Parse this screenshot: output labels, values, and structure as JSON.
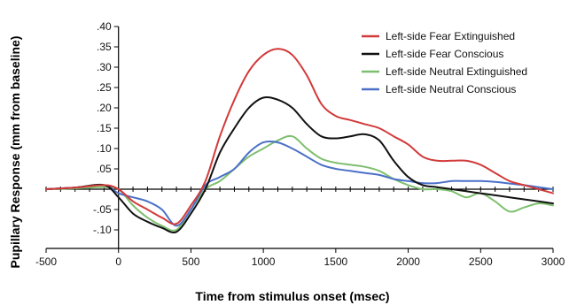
{
  "chart_data": {
    "type": "line",
    "title": "",
    "xlabel": "Time from stimulus onset (msec)",
    "ylabel": "Pupillary Response (mm from baseline)",
    "xlim": [
      -500,
      3000
    ],
    "ylim": [
      -0.12,
      0.4
    ],
    "x_ticks": [
      -500,
      0,
      500,
      1000,
      1500,
      2000,
      2500,
      3000
    ],
    "x_tick_labels": [
      "-500",
      "0",
      "500",
      "1000",
      "1500",
      "2000",
      "2500",
      "3000"
    ],
    "y_ticks": [
      0.4,
      0.35,
      0.3,
      0.25,
      0.2,
      0.15,
      0.1,
      0.05,
      0.0,
      -0.05,
      -0.1
    ],
    "y_tick_labels": [
      ".40",
      ".35",
      ".30",
      ".25",
      ".20",
      ".15",
      ".10",
      ".05",
      "",
      "-.05",
      "-.10"
    ],
    "grid": false,
    "legend_position": "top-right",
    "series": [
      {
        "name": "Left-side Fear Extinguished",
        "color": "#d23a3a",
        "x": [
          -500,
          -300,
          -100,
          0,
          100,
          200,
          300,
          400,
          500,
          600,
          700,
          800,
          900,
          1000,
          1100,
          1200,
          1300,
          1400,
          1500,
          1600,
          1700,
          1800,
          1900,
          2000,
          2100,
          2200,
          2300,
          2400,
          2500,
          2600,
          2700,
          2800,
          2900,
          3000
        ],
        "y": [
          0.0,
          0.004,
          0.01,
          0.0,
          -0.03,
          -0.05,
          -0.07,
          -0.085,
          -0.04,
          0.02,
          0.13,
          0.22,
          0.29,
          0.33,
          0.345,
          0.33,
          0.28,
          0.21,
          0.18,
          0.17,
          0.16,
          0.15,
          0.13,
          0.11,
          0.08,
          0.07,
          0.07,
          0.07,
          0.06,
          0.04,
          0.02,
          0.01,
          0.0,
          -0.01
        ]
      },
      {
        "name": "Left-side Fear Conscious",
        "color": "#111111",
        "x": [
          -500,
          -300,
          -100,
          0,
          100,
          200,
          300,
          400,
          500,
          600,
          700,
          800,
          900,
          1000,
          1100,
          1200,
          1300,
          1400,
          1500,
          1600,
          1700,
          1800,
          1900,
          2000,
          2100,
          2200,
          2300,
          2400,
          2500,
          2600,
          2700,
          2800,
          2900,
          3000
        ],
        "y": [
          0.0,
          0.004,
          0.01,
          -0.02,
          -0.06,
          -0.08,
          -0.095,
          -0.105,
          -0.06,
          0.0,
          0.09,
          0.15,
          0.2,
          0.225,
          0.22,
          0.2,
          0.16,
          0.13,
          0.125,
          0.13,
          0.135,
          0.12,
          0.07,
          0.03,
          0.01,
          0.005,
          0.0,
          -0.005,
          -0.01,
          -0.015,
          -0.02,
          -0.025,
          -0.03,
          -0.035
        ]
      },
      {
        "name": "Left-side Neutral Extinguished",
        "color": "#7dbf6e",
        "x": [
          -500,
          -300,
          -100,
          0,
          100,
          200,
          300,
          400,
          500,
          600,
          700,
          800,
          900,
          1000,
          1100,
          1200,
          1300,
          1400,
          1500,
          1600,
          1700,
          1800,
          1900,
          2000,
          2100,
          2200,
          2300,
          2400,
          2500,
          2600,
          2700,
          2800,
          2900,
          3000
        ],
        "y": [
          0.0,
          0.002,
          0.005,
          0.0,
          -0.04,
          -0.07,
          -0.09,
          -0.1,
          -0.05,
          0.0,
          0.02,
          0.05,
          0.08,
          0.1,
          0.12,
          0.13,
          0.1,
          0.075,
          0.065,
          0.06,
          0.055,
          0.045,
          0.025,
          0.01,
          0.0,
          0.0,
          -0.005,
          -0.02,
          -0.01,
          -0.03,
          -0.055,
          -0.045,
          -0.035,
          -0.04
        ]
      },
      {
        "name": "Left-side Neutral Conscious",
        "color": "#4a70c8",
        "x": [
          -500,
          -300,
          -100,
          0,
          100,
          200,
          300,
          400,
          500,
          600,
          700,
          800,
          900,
          1000,
          1100,
          1200,
          1300,
          1400,
          1500,
          1600,
          1700,
          1800,
          1900,
          2000,
          2100,
          2200,
          2300,
          2400,
          2500,
          2600,
          2700,
          2800,
          2900,
          3000
        ],
        "y": [
          0.0,
          0.004,
          0.01,
          -0.01,
          -0.02,
          -0.03,
          -0.05,
          -0.09,
          -0.05,
          0.01,
          0.03,
          0.05,
          0.09,
          0.115,
          0.115,
          0.1,
          0.08,
          0.06,
          0.05,
          0.045,
          0.04,
          0.035,
          0.025,
          0.02,
          0.015,
          0.015,
          0.02,
          0.02,
          0.02,
          0.018,
          0.014,
          0.01,
          0.005,
          0.0
        ]
      }
    ]
  }
}
